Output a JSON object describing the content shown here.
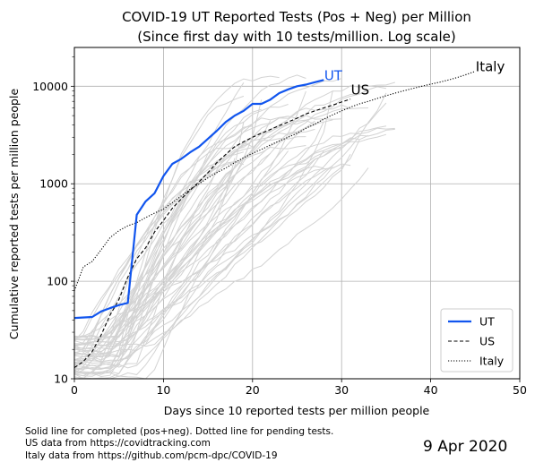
{
  "chart_data": {
    "type": "line",
    "title": "COVID-19 UT Reported Tests (Pos + Neg) per Million",
    "subtitle": "(Since first day with 10 tests/million. Log scale)",
    "xlabel": "Days since 10 reported tests per million people",
    "ylabel": "Cumulative reported tests per million people",
    "xlim": [
      0,
      50
    ],
    "ylim": [
      10,
      25000
    ],
    "y_scale": "log",
    "grid": true,
    "x_ticks": [
      0,
      10,
      20,
      30,
      40,
      50
    ],
    "y_ticks": [
      10,
      100,
      1000,
      10000
    ],
    "x_tick_labels": [
      "0",
      "10",
      "20",
      "30",
      "40",
      "50"
    ],
    "y_tick_labels": [
      "10",
      "100",
      "1000",
      "10000"
    ],
    "legend": {
      "placement": "lower-right",
      "entries": [
        "UT",
        "US",
        "Italy"
      ]
    },
    "series": [
      {
        "name": "UT",
        "color": "#1155ee",
        "style": "solid",
        "x": [
          0,
          2,
          3,
          4,
          5,
          6,
          7,
          8,
          9,
          10,
          11,
          12,
          13,
          14,
          15,
          16,
          17,
          18,
          19,
          20,
          21,
          22,
          23,
          24,
          25,
          26,
          27,
          28
        ],
        "y": [
          42,
          43,
          49,
          53,
          57,
          60,
          480,
          660,
          800,
          1200,
          1600,
          1800,
          2100,
          2400,
          2900,
          3500,
          4300,
          5000,
          5600,
          6600,
          6600,
          7300,
          8500,
          9300,
          10000,
          10400,
          11000,
          11600
        ]
      },
      {
        "name": "US",
        "color": "#000000",
        "style": "dashed",
        "x": [
          0,
          1,
          2,
          3,
          4,
          5,
          6,
          7,
          8,
          9,
          10,
          11,
          12,
          13,
          14,
          15,
          16,
          17,
          18,
          19,
          20,
          21,
          22,
          23,
          24,
          25,
          26,
          27,
          28,
          29,
          30,
          31
        ],
        "y": [
          13,
          15,
          19,
          28,
          45,
          65,
          110,
          170,
          220,
          320,
          420,
          560,
          700,
          860,
          1050,
          1300,
          1650,
          2000,
          2400,
          2700,
          3000,
          3300,
          3600,
          3950,
          4300,
          4700,
          5200,
          5600,
          6000,
          6400,
          6900,
          7400
        ]
      },
      {
        "name": "Italy",
        "color": "#000000",
        "style": "dotted",
        "x": [
          0,
          1,
          2,
          3,
          4,
          5,
          6,
          7,
          8,
          9,
          10,
          11,
          12,
          13,
          14,
          15,
          16,
          17,
          18,
          19,
          20,
          21,
          22,
          23,
          24,
          25,
          26,
          27,
          28,
          29,
          30,
          31,
          32,
          33,
          34,
          35,
          36,
          37,
          38,
          39,
          40,
          41,
          42,
          43,
          44,
          45
        ],
        "y": [
          80,
          140,
          160,
          210,
          280,
          330,
          370,
          400,
          450,
          500,
          550,
          640,
          750,
          880,
          1000,
          1150,
          1300,
          1450,
          1650,
          1850,
          2050,
          2250,
          2500,
          2750,
          3000,
          3300,
          3700,
          4100,
          4600,
          5100,
          5600,
          6100,
          6600,
          7000,
          7500,
          8000,
          8500,
          9000,
          9500,
          10000,
          10500,
          11000,
          11600,
          12300,
          13200,
          14200
        ]
      }
    ],
    "line_labels": [
      "UT",
      "US",
      "Italy"
    ],
    "background_series_color": "#d3d3d3"
  },
  "footnotes": {
    "line1": "Solid line for completed (pos+neg). Dotted line for pending tests.",
    "line2": "US data from https://covidtracking.com",
    "line3": "Italy data from https://github.com/pcm-dpc/COVID-19"
  },
  "date_stamp": "9 Apr 2020"
}
